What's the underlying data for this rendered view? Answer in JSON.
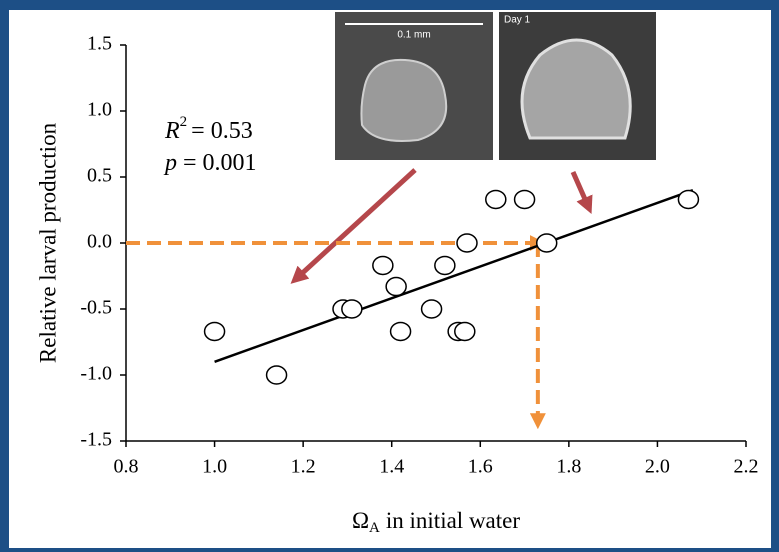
{
  "chart_data": {
    "type": "scatter",
    "y_label": "Relative larval production",
    "x_label_symbol": "Ω",
    "x_label_subscript": "A",
    "x_label_text": "in initial water",
    "r2_symbol": "R",
    "r2_exponent": "2",
    "r2_text": "= 0.53",
    "p_symbol": "p",
    "p_text": "= 0.001",
    "image_left_scale": "0.1 mm",
    "image_right_label": "Day 1",
    "x": [
      1.0,
      1.14,
      1.29,
      1.31,
      1.38,
      1.41,
      1.42,
      1.49,
      1.52,
      1.55,
      1.565,
      1.57,
      1.635,
      1.7,
      1.75,
      2.07
    ],
    "series": [
      {
        "color": "#000000",
        "values": [
          -0.67,
          -1.0,
          -0.5,
          -0.5,
          -0.17,
          -0.33,
          -0.67,
          -0.5,
          -0.17,
          -0.67,
          -0.67,
          0.0,
          0.33,
          0.33,
          0.0,
          0.33
        ]
      }
    ],
    "fit": {
      "x": [
        1.0,
        2.08
      ],
      "y": [
        -0.9,
        0.4
      ],
      "color": "#000000"
    },
    "guide": {
      "x": 1.73,
      "y": 0.0,
      "y_end": -1.35,
      "color": "#f0913a"
    },
    "xlim": [
      0.8,
      2.2
    ],
    "ylim": [
      -1.5,
      1.5
    ],
    "xticks": [
      0.8,
      {
        "value": 1,
        "label": "1.0"
      },
      1.2,
      1.4,
      1.6,
      1.8,
      {
        "value": 2,
        "label": "2.0"
      },
      2.2
    ],
    "yticks": [
      -1.5,
      {
        "value": -1,
        "label": "-1.0"
      },
      -0.5,
      {
        "value": 0,
        "label": "0.0"
      },
      0.5,
      {
        "value": 1,
        "label": "1.0"
      },
      1.5
    ]
  }
}
